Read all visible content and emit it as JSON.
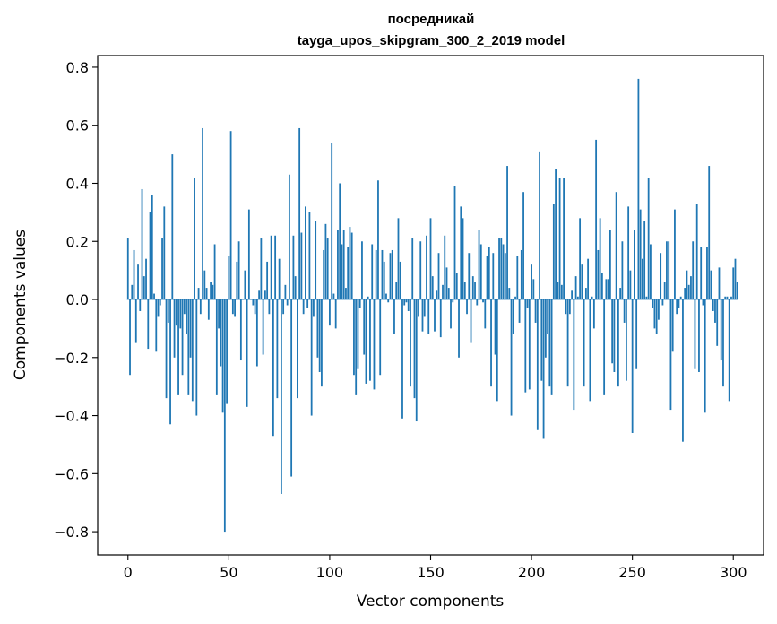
{
  "chart_data": {
    "type": "bar",
    "title": "посредникай",
    "subtitle": "tayga_upos_skipgram_300_2_2019 model",
    "xlabel": "Vector components",
    "ylabel": "Components values",
    "xlim": [
      -15,
      315
    ],
    "ylim": [
      -0.88,
      0.84
    ],
    "xticks": [
      0,
      50,
      100,
      150,
      200,
      250,
      300
    ],
    "xtick_labels": [
      "0",
      "50",
      "100",
      "150",
      "200",
      "250",
      "300"
    ],
    "yticks": [
      0.8,
      0.6,
      0.4,
      0.2,
      0.0,
      -0.2,
      -0.4,
      -0.6,
      -0.8
    ],
    "ytick_labels": [
      "0.8",
      "0.6",
      "0.4",
      "0.2",
      "0.0",
      "−0.2",
      "−0.4",
      "−0.6",
      "−0.8"
    ],
    "grid": false,
    "bar_color": "#1f77b4",
    "values": [
      0.21,
      -0.26,
      0.05,
      0.17,
      -0.15,
      0.12,
      -0.04,
      0.38,
      0.08,
      0.14,
      -0.17,
      0.3,
      0.36,
      0.02,
      -0.18,
      -0.06,
      -0.02,
      0.21,
      0.32,
      -0.34,
      -0.08,
      -0.43,
      0.5,
      -0.2,
      -0.09,
      -0.33,
      -0.1,
      -0.26,
      -0.05,
      -0.12,
      -0.33,
      -0.2,
      -0.35,
      0.42,
      -0.4,
      0.04,
      -0.05,
      0.59,
      0.1,
      0.04,
      -0.07,
      0.06,
      0.05,
      0.19,
      -0.33,
      -0.1,
      -0.23,
      -0.39,
      -0.8,
      -0.36,
      0.15,
      0.58,
      -0.05,
      -0.06,
      0.13,
      0.2,
      -0.21,
      0.0,
      0.1,
      -0.37,
      0.31,
      0.0,
      -0.02,
      -0.05,
      -0.23,
      0.03,
      0.21,
      -0.19,
      0.03,
      0.13,
      -0.05,
      0.22,
      -0.47,
      0.22,
      -0.34,
      0.14,
      -0.67,
      -0.05,
      0.05,
      -0.02,
      0.43,
      -0.61,
      0.22,
      0.08,
      -0.34,
      0.59,
      0.23,
      -0.05,
      0.32,
      -0.03,
      0.3,
      -0.4,
      -0.06,
      0.27,
      -0.2,
      -0.25,
      -0.3,
      0.17,
      0.26,
      0.21,
      -0.09,
      0.54,
      0.02,
      -0.1,
      0.24,
      0.4,
      0.19,
      0.24,
      0.04,
      0.18,
      0.25,
      0.23,
      -0.26,
      -0.33,
      -0.24,
      -0.03,
      0.2,
      -0.19,
      -0.29,
      0.01,
      -0.28,
      0.19,
      -0.31,
      0.17,
      0.41,
      -0.26,
      0.17,
      0.13,
      0.02,
      -0.01,
      0.16,
      0.17,
      -0.12,
      0.06,
      0.28,
      0.13,
      -0.41,
      -0.02,
      -0.01,
      -0.04,
      -0.3,
      0.21,
      -0.34,
      -0.42,
      -0.06,
      0.2,
      -0.11,
      -0.06,
      0.22,
      -0.12,
      0.28,
      0.08,
      -0.11,
      0.03,
      0.16,
      -0.13,
      0.05,
      0.22,
      0.11,
      0.04,
      -0.1,
      -0.01,
      0.39,
      0.09,
      -0.2,
      0.32,
      0.28,
      0.06,
      -0.05,
      0.16,
      -0.15,
      0.08,
      0.06,
      -0.02,
      0.24,
      0.19,
      -0.01,
      -0.1,
      0.15,
      0.18,
      -0.3,
      0.16,
      -0.19,
      -0.35,
      0.21,
      0.21,
      0.19,
      0.16,
      0.46,
      0.04,
      -0.4,
      -0.12,
      0.01,
      0.15,
      -0.08,
      0.17,
      0.37,
      -0.32,
      -0.03,
      -0.31,
      0.12,
      0.07,
      -0.08,
      -0.45,
      0.51,
      -0.28,
      -0.48,
      -0.2,
      -0.12,
      -0.3,
      -0.33,
      0.33,
      0.45,
      0.06,
      0.42,
      0.05,
      0.42,
      -0.05,
      -0.3,
      -0.05,
      0.03,
      -0.38,
      0.08,
      0.01,
      0.28,
      0.12,
      -0.3,
      0.04,
      0.14,
      -0.35,
      0.01,
      -0.1,
      0.55,
      0.17,
      0.28,
      0.09,
      -0.33,
      0.07,
      0.07,
      0.24,
      -0.22,
      -0.25,
      0.37,
      -0.3,
      0.04,
      0.2,
      -0.08,
      -0.28,
      0.32,
      0.1,
      -0.46,
      0.24,
      -0.24,
      0.76,
      0.31,
      0.14,
      0.27,
      0.01,
      0.42,
      0.19,
      -0.03,
      -0.1,
      -0.12,
      -0.07,
      0.16,
      -0.02,
      0.06,
      0.2,
      0.2,
      -0.38,
      -0.18,
      0.31,
      -0.05,
      -0.03,
      0.01,
      -0.49,
      0.04,
      0.1,
      0.05,
      0.08,
      0.2,
      -0.24,
      0.33,
      -0.25,
      0.18,
      -0.02,
      -0.39,
      0.18,
      0.46,
      0.1,
      -0.04,
      -0.08,
      -0.16,
      0.11,
      -0.21,
      -0.3,
      0.01,
      0.01,
      -0.35,
      0.01,
      0.11,
      0.14,
      0.06
    ]
  }
}
